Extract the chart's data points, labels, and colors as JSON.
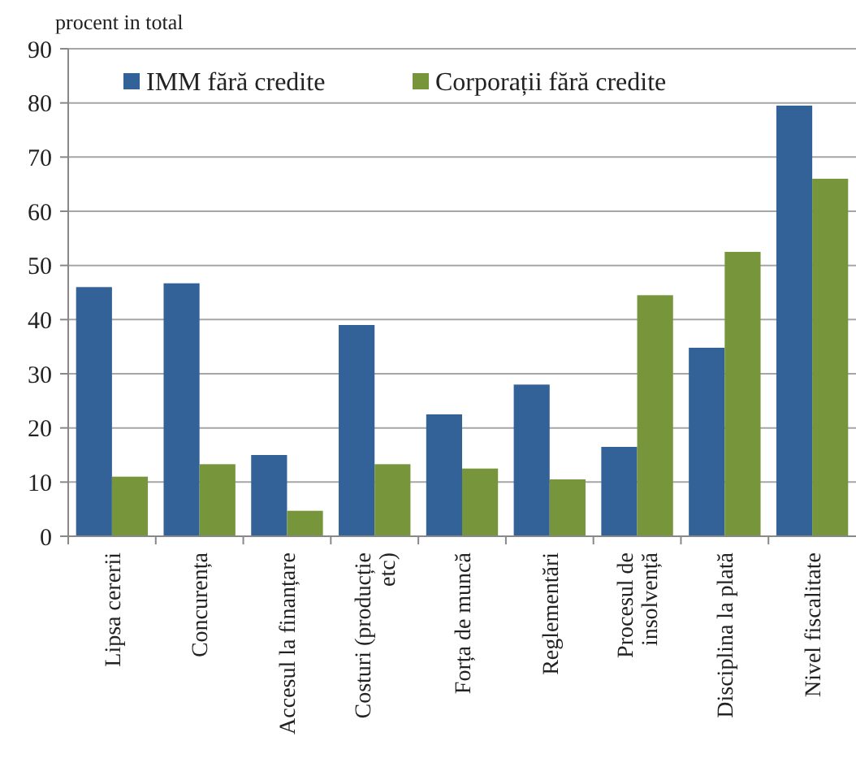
{
  "chart_data": {
    "type": "bar",
    "ylabel": "procent in total",
    "categories": [
      "Lipsa cererii",
      "Concurența",
      "Accesul la finanțare",
      "Costuri (producție\netc)",
      "Forța de muncă",
      "Reglementări",
      "Procesul de\ninsolvență",
      "Disciplina la plată",
      "Nivel fiscalitate"
    ],
    "series": [
      {
        "name": "IMM fără credite",
        "color": "#336299",
        "values": [
          46,
          46.7,
          15,
          39,
          22.5,
          28,
          16.5,
          34.8,
          79.5
        ]
      },
      {
        "name": "Corporații fără credite",
        "color": "#77963c",
        "values": [
          11,
          13.3,
          4.7,
          13.3,
          12.5,
          10.5,
          44.5,
          52.5,
          66
        ]
      }
    ],
    "ylim": [
      0,
      90
    ],
    "yticks": [
      0,
      10,
      20,
      30,
      40,
      50,
      60,
      70,
      80,
      90
    ],
    "grid": "y",
    "legend": "top"
  }
}
